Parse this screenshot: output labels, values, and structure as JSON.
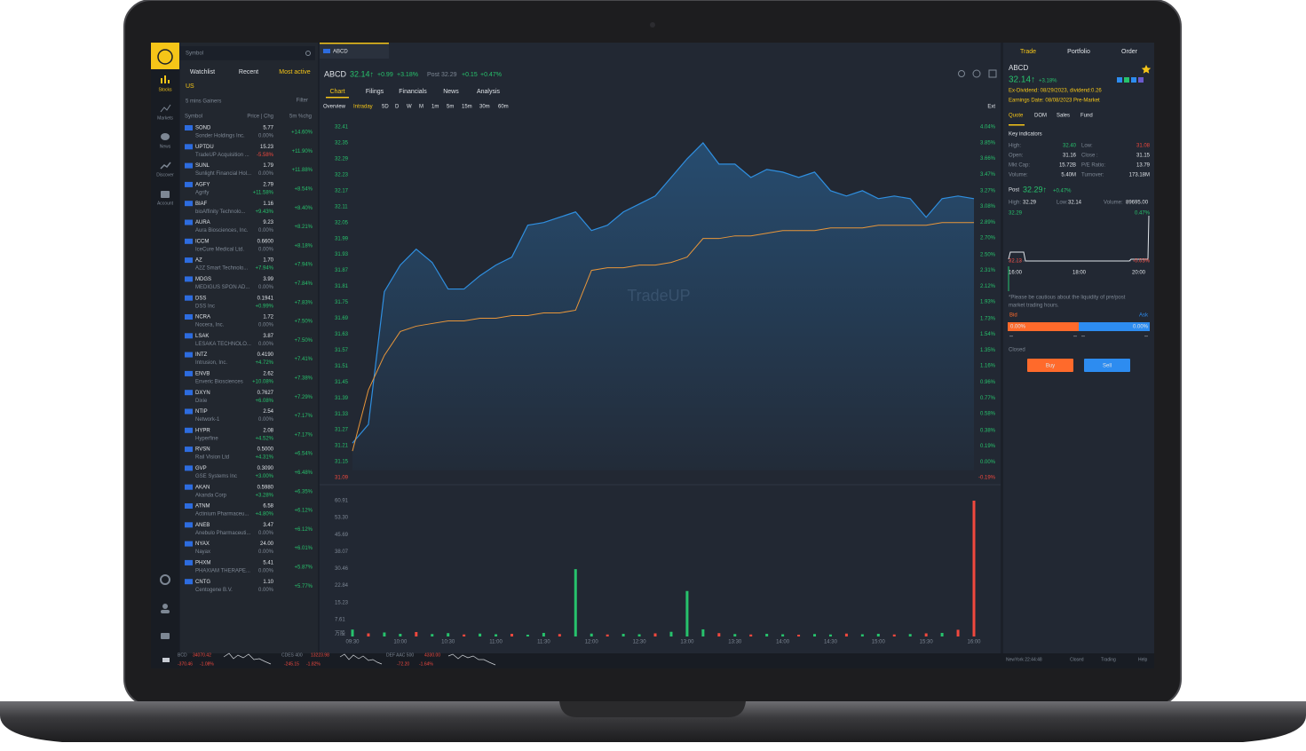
{
  "nav": {
    "items": [
      "Stocks",
      "Markets",
      "News",
      "Discover",
      "Account"
    ]
  },
  "watchlist": {
    "search_placeholder": "Symbol",
    "tabs": [
      "Watchlist",
      "Recent",
      "Most active"
    ],
    "region": "US",
    "screen": "5 mins Gainers",
    "filter": "Filter",
    "columns": [
      "Symbol",
      "Price | Chg",
      "5m %chg"
    ],
    "rows": [
      [
        "SOND",
        "Sonder Holdings Inc.",
        "5.77",
        "0.00%",
        "+14.60%"
      ],
      [
        "UPTDU",
        "TradeUP Acquisition ...",
        "15.23",
        "-5.58%",
        "+11.90%"
      ],
      [
        "SUNL",
        "Sunlight Financial Hol...",
        "1.79",
        "0.00%",
        "+11.88%"
      ],
      [
        "AGFY",
        "Agrify",
        "2.79",
        "+11.58%",
        "+8.54%"
      ],
      [
        "BIAF",
        "bioAffinity Technolo...",
        "1.16",
        "+9.43%",
        "+8.40%"
      ],
      [
        "AURA",
        "Aura Biosciences, Inc.",
        "9.23",
        "0.00%",
        "+8.21%"
      ],
      [
        "ICCM",
        "IceCure Medical Ltd.",
        "0.6600",
        "0.00%",
        "+8.18%"
      ],
      [
        "AZ",
        "A2Z Smart Technolo...",
        "1.70",
        "+7.94%",
        "+7.94%"
      ],
      [
        "MDGS",
        "MEDIGUS SPON AD...",
        "3.99",
        "0.00%",
        "+7.84%"
      ],
      [
        "DSS",
        "DSS Inc",
        "0.1941",
        "+0.99%",
        "+7.83%"
      ],
      [
        "NCRA",
        "Nocera, Inc.",
        "1.72",
        "0.00%",
        "+7.50%"
      ],
      [
        "LSAK",
        "LESAKA TECHNOLO...",
        "3.87",
        "0.00%",
        "+7.50%"
      ],
      [
        "INTZ",
        "Intrusion, Inc.",
        "0.4190",
        "+4.72%",
        "+7.41%"
      ],
      [
        "ENVB",
        "Enveric Biosciences",
        "2.62",
        "+10.08%",
        "+7.38%"
      ],
      [
        "DXYN",
        "Dixie",
        "0.7627",
        "+6.08%",
        "+7.29%"
      ],
      [
        "NTIP",
        "Network-1",
        "2.54",
        "0.00%",
        "+7.17%"
      ],
      [
        "HYPR",
        "Hyperfine",
        "2.08",
        "+4.52%",
        "+7.17%"
      ],
      [
        "RVSN",
        "Rail Vision Ltd",
        "0.5000",
        "+4.31%",
        "+6.54%"
      ],
      [
        "GVP",
        "GSE Systems Inc",
        "0.3090",
        "+3.00%",
        "+6.48%"
      ],
      [
        "AKAN",
        "Akanda Corp",
        "0.5980",
        "+3.28%",
        "+6.35%"
      ],
      [
        "ATNM",
        "Actinium Pharmaceu...",
        "6.58",
        "+4.80%",
        "+6.12%"
      ],
      [
        "ANEB",
        "Anebulo Pharmaceuti...",
        "3.47",
        "0.00%",
        "+6.12%"
      ],
      [
        "NYAX",
        "Nayax",
        "24.00",
        "0.00%",
        "+6.01%"
      ],
      [
        "PHXM",
        "PHAXIAM THERAPE...",
        "5.41",
        "0.00%",
        "+5.87%"
      ],
      [
        "CNTG",
        "Centogene B.V.",
        "1.10",
        "0.00%",
        "+5.77%"
      ]
    ]
  },
  "quote_header": {
    "tab": "ABCD",
    "symbol": "ABCD",
    "price": "32.14↑",
    "change": "+0.99",
    "change_pct": "+3.18%",
    "post_label": "Post",
    "post_price": "32.29",
    "post_change": "+0.15",
    "post_change_pct": "+0.47%"
  },
  "chart_tabs": [
    "Chart",
    "Filings",
    "Financials",
    "News",
    "Analysis"
  ],
  "periods": [
    "Overview",
    "Intraday",
    "5D",
    "D",
    "W",
    "M",
    "1m",
    "5m",
    "15m",
    "30m",
    "60m"
  ],
  "ext": "Ext",
  "watermark": "TradeUP",
  "chart_data": [
    {
      "type": "line",
      "x": [
        "09:30",
        "09:40",
        "09:50",
        "10:00",
        "10:10",
        "10:20",
        "10:30",
        "10:40",
        "10:50",
        "11:00",
        "11:10",
        "11:20",
        "11:30",
        "11:40",
        "11:50",
        "12:00",
        "12:10",
        "12:20",
        "12:30",
        "12:40",
        "12:50",
        "13:00",
        "13:10",
        "13:20",
        "13:30",
        "13:40",
        "13:50",
        "14:00",
        "14:10",
        "14:20",
        "14:30",
        "14:40",
        "14:50",
        "15:00",
        "15:10",
        "15:20",
        "15:30",
        "15:40",
        "15:50",
        "16:00"
      ],
      "series": [
        {
          "color": "#2f8fe0",
          "values": [
            31.22,
            31.29,
            31.79,
            31.89,
            31.95,
            31.9,
            31.8,
            31.8,
            31.85,
            31.89,
            31.92,
            32.04,
            32.05,
            32.07,
            32.09,
            32.02,
            32.04,
            32.09,
            32.12,
            32.15,
            32.22,
            32.29,
            32.35,
            32.27,
            32.27,
            32.22,
            32.25,
            32.24,
            32.22,
            32.24,
            32.17,
            32.15,
            32.17,
            32.14,
            32.15,
            32.14,
            32.07,
            32.14,
            32.15,
            32.14
          ]
        },
        {
          "color": "#e8963a",
          "values": [
            31.19,
            31.42,
            31.55,
            31.64,
            31.66,
            31.67,
            31.68,
            31.68,
            31.69,
            31.69,
            31.7,
            31.7,
            31.71,
            31.71,
            31.72,
            31.87,
            31.88,
            31.88,
            31.89,
            31.89,
            31.9,
            31.92,
            31.99,
            31.99,
            32.0,
            32.0,
            32.01,
            32.02,
            32.02,
            32.02,
            32.03,
            32.03,
            32.03,
            32.04,
            32.04,
            32.04,
            32.04,
            32.05,
            32.05,
            32.05
          ]
        }
      ],
      "xlim": [
        "09:30",
        "16:00"
      ],
      "ylim": [
        31.09,
        32.41
      ],
      "yticks": [
        32.41,
        32.35,
        32.29,
        32.23,
        32.17,
        32.11,
        32.05,
        31.99,
        31.93,
        31.87,
        31.81,
        31.75,
        31.69,
        31.63,
        31.57,
        31.51,
        31.45,
        31.39,
        31.33,
        31.27,
        31.21,
        31.15,
        31.09
      ],
      "y2lim": [
        -0.19,
        4.04
      ],
      "y2ticks": [
        {
          "value": 4.04,
          "label": "4.04%"
        },
        {
          "value": 3.85,
          "label": "3.85%"
        },
        {
          "value": 3.66,
          "label": "3.66%"
        },
        {
          "value": 3.47,
          "label": "3.47%"
        },
        {
          "value": 3.27,
          "label": "3.27%"
        },
        {
          "value": 3.08,
          "label": "3.08%"
        },
        {
          "value": 2.89,
          "label": "2.89%"
        },
        {
          "value": 2.7,
          "label": "2.70%"
        },
        {
          "value": 2.5,
          "label": "2.50%"
        },
        {
          "value": 2.31,
          "label": "2.31%"
        },
        {
          "value": 2.12,
          "label": "2.12%"
        },
        {
          "value": 1.93,
          "label": "1.93%"
        },
        {
          "value": 1.73,
          "label": "1.73%"
        },
        {
          "value": 1.54,
          "label": "1.54%"
        },
        {
          "value": 1.35,
          "label": "1.35%"
        },
        {
          "value": 1.16,
          "label": "1.16%"
        },
        {
          "value": 0.96,
          "label": "0.96%"
        },
        {
          "value": 0.77,
          "label": "0.77%"
        },
        {
          "value": 0.58,
          "label": "0.58%"
        },
        {
          "value": 0.38,
          "label": "0.38%"
        },
        {
          "value": 0.19,
          "label": "0.19%"
        },
        {
          "value": 0,
          "label": "0.00%"
        },
        {
          "value": -0.19,
          "label": "-0.19%"
        }
      ],
      "grid": false
    },
    {
      "type": "bar",
      "x": [
        "09:30",
        "09:40",
        "09:50",
        "10:00",
        "10:10",
        "10:20",
        "10:30",
        "10:40",
        "10:50",
        "11:00",
        "11:10",
        "11:20",
        "11:30",
        "11:40",
        "11:50",
        "12:00",
        "12:10",
        "12:20",
        "12:30",
        "12:40",
        "12:50",
        "13:00",
        "13:10",
        "13:20",
        "13:30",
        "13:40",
        "13:50",
        "14:00",
        "14:10",
        "14:20",
        "14:30",
        "14:40",
        "14:50",
        "15:00",
        "15:10",
        "15:20",
        "15:30",
        "15:40",
        "15:50",
        "16:00"
      ],
      "values": [
        3.1,
        1.4,
        1.8,
        1.2,
        2.0,
        1.1,
        1.5,
        0.9,
        1.3,
        1.0,
        1.2,
        0.8,
        1.6,
        1.1,
        30.2,
        1.3,
        0.9,
        1.2,
        1.0,
        1.4,
        2.1,
        20.4,
        3.2,
        1.5,
        1.1,
        0.9,
        1.2,
        1.0,
        0.8,
        1.1,
        0.9,
        1.3,
        1.0,
        1.2,
        0.9,
        1.1,
        1.4,
        1.6,
        3.0,
        60.91
      ],
      "colors": [
        "#27c26c",
        "#f0483e",
        "#27c26c",
        "#27c26c",
        "#f0483e",
        "#27c26c",
        "#27c26c",
        "#f0483e",
        "#27c26c",
        "#27c26c",
        "#f0483e",
        "#27c26c",
        "#27c26c",
        "#f0483e",
        "#27c26c",
        "#27c26c",
        "#f0483e",
        "#27c26c",
        "#27c26c",
        "#f0483e",
        "#27c26c",
        "#27c26c",
        "#27c26c",
        "#f0483e",
        "#27c26c",
        "#f0483e",
        "#27c26c",
        "#27c26c",
        "#f0483e",
        "#27c26c",
        "#27c26c",
        "#f0483e",
        "#27c26c",
        "#27c26c",
        "#f0483e",
        "#27c26c",
        "#f0483e",
        "#27c26c",
        "#f0483e",
        "#f0483e"
      ],
      "xlim": [
        "09:30",
        "16:00"
      ],
      "xticks": [
        "09:30",
        "10:00",
        "10:30",
        "11:00",
        "11:30",
        "12:00",
        "12:30",
        "13:00",
        "13:30",
        "14:00",
        "14:30",
        "15:00",
        "15:30",
        "16:00"
      ],
      "ylim": [
        0,
        60.91
      ],
      "yticks": [
        60.91,
        {
          "value": 53.3,
          "label": "53.30"
        },
        45.69,
        38.07,
        30.46,
        22.84,
        15.23,
        7.61,
        {
          "value": 0,
          "label": "万股"
        }
      ],
      "grid": false
    }
  ],
  "trade_panel": {
    "tabs": [
      "Trade",
      "Portfolio",
      "Order"
    ],
    "symbol": "ABCD",
    "price": "32.14↑",
    "change_pct": "+3.18%",
    "dividend": "Ex-Dividend: 08/29/2023, dividend:0.26",
    "earnings": "Earnings Date: 08/08/2023 Pre-Market",
    "quote_tabs": [
      "Quote",
      "DOM",
      "Sales",
      "Fund"
    ],
    "key_indicators": "Key indicators",
    "indicators": [
      [
        "High:",
        "32.40",
        "Low:",
        "31.08"
      ],
      [
        "Open:",
        "31.16",
        "Close :",
        "31.15"
      ],
      [
        "Mkt Cap:",
        "15.72B",
        "P/E Ratio:",
        "13.79"
      ],
      [
        "Volume:",
        "5.40M",
        "Turnover:",
        "173.18M"
      ]
    ],
    "post": {
      "label": "Post",
      "price": "32.29↑",
      "change_pct": "+0.47%",
      "stats": [
        "High:",
        "32.29",
        "Low:",
        "32.14",
        "Volume:",
        "89695.00"
      ],
      "chart_high": "32.29",
      "chart_high_pct": "0.47%",
      "chart_low": "32.13",
      "chart_low_pct": "-0.03%",
      "times": [
        "16:00",
        "18:00",
        "20:00"
      ]
    },
    "notice": [
      "*Please be cautious about the liquidity of pre/post",
      "market trading hours."
    ],
    "bid": "Bid",
    "ask": "Ask",
    "bid_pct": "0.00%",
    "ask_pct": "0.00%",
    "dashes": [
      "--",
      "--",
      "--",
      "--"
    ],
    "status": "Closed",
    "buy": "Buy",
    "sell": "Sell"
  },
  "status_bar": {
    "indices": [
      {
        "name": "BCD",
        "last": "34070.42",
        "change": "-370.46",
        "change_pct": "-1.08%"
      },
      {
        "name": "CDES 400",
        "last": "13223.98",
        "change": "-245.15",
        "change_pct": "-1.82%"
      },
      {
        "name": "DEF AAC 500",
        "last": "4330.00",
        "change": "-72.20",
        "change_pct": "-1.64%"
      }
    ],
    "clock": "NewYork 22:44:48",
    "market": "Closed",
    "trading": "Trading",
    "help": "Help"
  }
}
